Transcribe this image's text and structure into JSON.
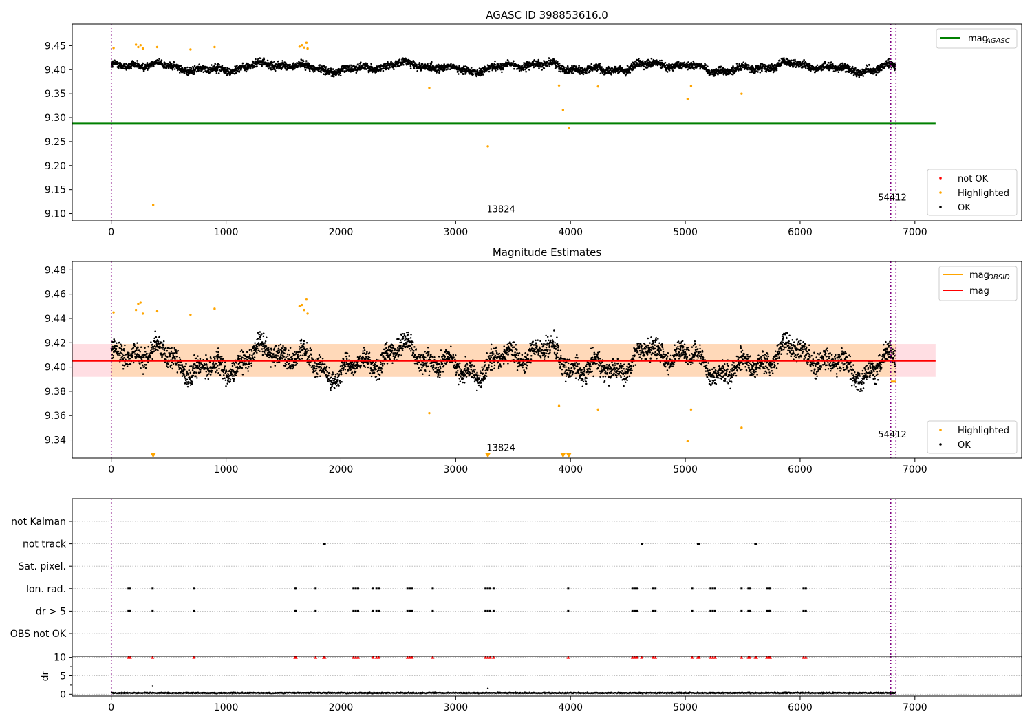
{
  "chart_data": [
    {
      "type": "scatter",
      "title": "AGASC ID 398853616.0",
      "xlim": [
        -340,
        7930
      ],
      "ylim": [
        9.085,
        9.495
      ],
      "xticks": [
        "0",
        "1000",
        "2000",
        "3000",
        "4000",
        "5000",
        "6000",
        "7000"
      ],
      "yticks": [
        "9.10",
        "9.15",
        "9.20",
        "9.25",
        "9.30",
        "9.35",
        "9.40",
        "9.45"
      ],
      "grid": false,
      "vlines": [
        0,
        6790,
        6835
      ],
      "reference_line": {
        "name": "mag",
        "subscript": "AGASC",
        "y": 9.288,
        "x_end": 7180,
        "color": "#008000"
      },
      "legend_top": {
        "placement": "upper-right",
        "entries": [
          {
            "name": "mag",
            "subscript": "AGASC",
            "color": "#008000"
          }
        ]
      },
      "legend_bottom": {
        "placement": "lower-right",
        "entries": [
          {
            "name": "not OK",
            "color": "#ff0000"
          },
          {
            "name": "Highlighted",
            "color": "#ffa500"
          },
          {
            "name": "OK",
            "color": "#000000"
          }
        ]
      },
      "annotations": [
        {
          "text": "13824",
          "x": 3270,
          "y": 9.103
        },
        {
          "text": "54412",
          "x": 6680,
          "y": 9.127
        }
      ],
      "ok_profile": {
        "x_start": 0,
        "x_end": 6830,
        "mean": 9.405,
        "spread": 0.01
      },
      "series": [
        {
          "name": "Highlighted",
          "color": "#ffa500",
          "points": [
            [
              20,
              9.445
            ],
            [
              215,
              9.452
            ],
            [
              235,
              9.447
            ],
            [
              255,
              9.451
            ],
            [
              275,
              9.444
            ],
            [
              365,
              9.118
            ],
            [
              400,
              9.447
            ],
            [
              690,
              9.442
            ],
            [
              900,
              9.447
            ],
            [
              1640,
              9.448
            ],
            [
              1660,
              9.451
            ],
            [
              1680,
              9.446
            ],
            [
              1700,
              9.456
            ],
            [
              1710,
              9.444
            ],
            [
              2770,
              9.362
            ],
            [
              3280,
              9.24
            ],
            [
              3900,
              9.367
            ],
            [
              3935,
              9.316
            ],
            [
              3985,
              9.278
            ],
            [
              4240,
              9.365
            ],
            [
              5020,
              9.339
            ],
            [
              5050,
              9.366
            ],
            [
              5490,
              9.35
            ]
          ]
        }
      ]
    },
    {
      "type": "scatter",
      "title": "Magnitude Estimates",
      "xlim": [
        -340,
        7930
      ],
      "ylim": [
        9.325,
        9.487
      ],
      "xticks": [
        "0",
        "1000",
        "2000",
        "3000",
        "4000",
        "5000",
        "6000",
        "7000"
      ],
      "yticks": [
        "9.34",
        "9.36",
        "9.38",
        "9.40",
        "9.42",
        "9.44",
        "9.46",
        "9.48"
      ],
      "grid": false,
      "vlines": [
        0,
        6790,
        6835
      ],
      "mean_line": {
        "name": "mag",
        "y": 9.405,
        "x_start": -340,
        "x_end": 7180,
        "color": "#ff0000"
      },
      "band": {
        "y_low": 9.392,
        "y_high": 9.419,
        "x_start": -340,
        "x_end": 7180,
        "color": "#ffb6c1"
      },
      "band_ok": {
        "y_low": 9.392,
        "y_high": 9.419,
        "x_start": 0,
        "x_end": 6840,
        "color": "#ffd8b4"
      },
      "legend_top": {
        "placement": "upper-right",
        "entries": [
          {
            "name": "mag",
            "subscript": "OBSID",
            "color": "#ffa500"
          },
          {
            "name": "mag",
            "color": "#ff0000"
          }
        ]
      },
      "legend_bottom": {
        "placement": "lower-right",
        "entries": [
          {
            "name": "Highlighted",
            "color": "#ffa500"
          },
          {
            "name": "OK",
            "color": "#000000"
          }
        ]
      },
      "annotations": [
        {
          "text": "13824",
          "x": 3270,
          "y": 9.331
        },
        {
          "text": "54412",
          "x": 6680,
          "y": 9.342
        }
      ],
      "obsid_segments": [
        {
          "x0": 6790,
          "x1": 6835,
          "y": 9.388,
          "color": "#ffa500"
        }
      ],
      "ok_profile": {
        "x_start": 0,
        "x_end": 6830,
        "mean": 9.405,
        "spread": 0.011
      },
      "series": [
        {
          "name": "Highlighted",
          "color": "#ffa500",
          "points": [
            [
              20,
              9.445
            ],
            [
              215,
              9.447
            ],
            [
              235,
              9.452
            ],
            [
              255,
              9.453
            ],
            [
              275,
              9.444
            ],
            [
              400,
              9.446
            ],
            [
              690,
              9.443
            ],
            [
              900,
              9.448
            ],
            [
              1640,
              9.45
            ],
            [
              1660,
              9.451
            ],
            [
              1680,
              9.447
            ],
            [
              1700,
              9.456
            ],
            [
              1710,
              9.444
            ],
            [
              2770,
              9.362
            ],
            [
              3900,
              9.368
            ],
            [
              4240,
              9.365
            ],
            [
              5020,
              9.339
            ],
            [
              5050,
              9.365
            ],
            [
              5490,
              9.35
            ]
          ]
        },
        {
          "name": "out-of-range",
          "color": "#ffa500",
          "marker": "triangle-down",
          "points": [
            [
              365,
              9.327
            ],
            [
              3280,
              9.327
            ],
            [
              3935,
              9.327
            ],
            [
              3985,
              9.327
            ]
          ]
        }
      ]
    },
    {
      "type": "scatter",
      "title": "",
      "xlim": [
        -340,
        7930
      ],
      "categories": [
        "not Kalman",
        "not track",
        "Sat. pixel.",
        "Ion. rad.",
        "dr > 5",
        "OBS not OK"
      ],
      "xticks": [
        "0",
        "1000",
        "2000",
        "3000",
        "4000",
        "5000",
        "6000",
        "7000"
      ],
      "grid": true,
      "vlines": [
        0,
        6790,
        6835
      ],
      "flags": {
        "not Kalman": [],
        "not track": [
          1850,
          1860,
          4620,
          5110,
          5120,
          5610,
          5620
        ],
        "Sat. pixel.": [],
        "Ion. rad.": [
          150,
          165,
          360,
          720,
          1600,
          1610,
          1780,
          2110,
          2130,
          2150,
          2280,
          2310,
          2330,
          2580,
          2600,
          2620,
          2800,
          3260,
          3280,
          3300,
          3330,
          3980,
          4540,
          4560,
          4580,
          4720,
          4740,
          5060,
          5220,
          5240,
          5260,
          5490,
          5550,
          5560,
          5710,
          5730,
          5740,
          6030,
          6050
        ],
        "dr > 5": [
          150,
          165,
          360,
          720,
          1600,
          1610,
          1780,
          2110,
          2130,
          2150,
          2280,
          2310,
          2330,
          2580,
          2600,
          2620,
          2800,
          3260,
          3280,
          3300,
          3330,
          3980,
          4540,
          4560,
          4580,
          4720,
          4740,
          5060,
          5220,
          5240,
          5260,
          5490,
          5550,
          5560,
          5710,
          5730,
          5740,
          6030,
          6050
        ],
        "OBS not OK": []
      }
    },
    {
      "type": "scatter",
      "title": "",
      "ylabel": "dr",
      "xlim": [
        -340,
        7930
      ],
      "ylim": [
        -0.5,
        10.3
      ],
      "xticks": [
        "0",
        "1000",
        "2000",
        "3000",
        "4000",
        "5000",
        "6000",
        "7000"
      ],
      "yticks": [
        "0",
        "5",
        "10"
      ],
      "grid": true,
      "vlines": [
        0,
        6790,
        6835
      ],
      "clipped_marker_y": 10,
      "clipped_x": [
        150,
        165,
        360,
        720,
        1600,
        1610,
        1780,
        1850,
        1860,
        2110,
        2130,
        2150,
        2280,
        2310,
        2330,
        2580,
        2600,
        2620,
        2800,
        3260,
        3280,
        3300,
        3330,
        3980,
        4540,
        4560,
        4580,
        4620,
        4720,
        4740,
        5060,
        5110,
        5120,
        5220,
        5240,
        5260,
        5490,
        5550,
        5560,
        5610,
        5620,
        5710,
        5730,
        5740,
        6030,
        6050
      ],
      "outliers": [
        [
          360,
          2.2
        ],
        [
          3280,
          1.6
        ]
      ],
      "ok_profile": {
        "x_start": 0,
        "x_end": 6830,
        "mean": 0.35,
        "spread": 0.2
      }
    }
  ]
}
